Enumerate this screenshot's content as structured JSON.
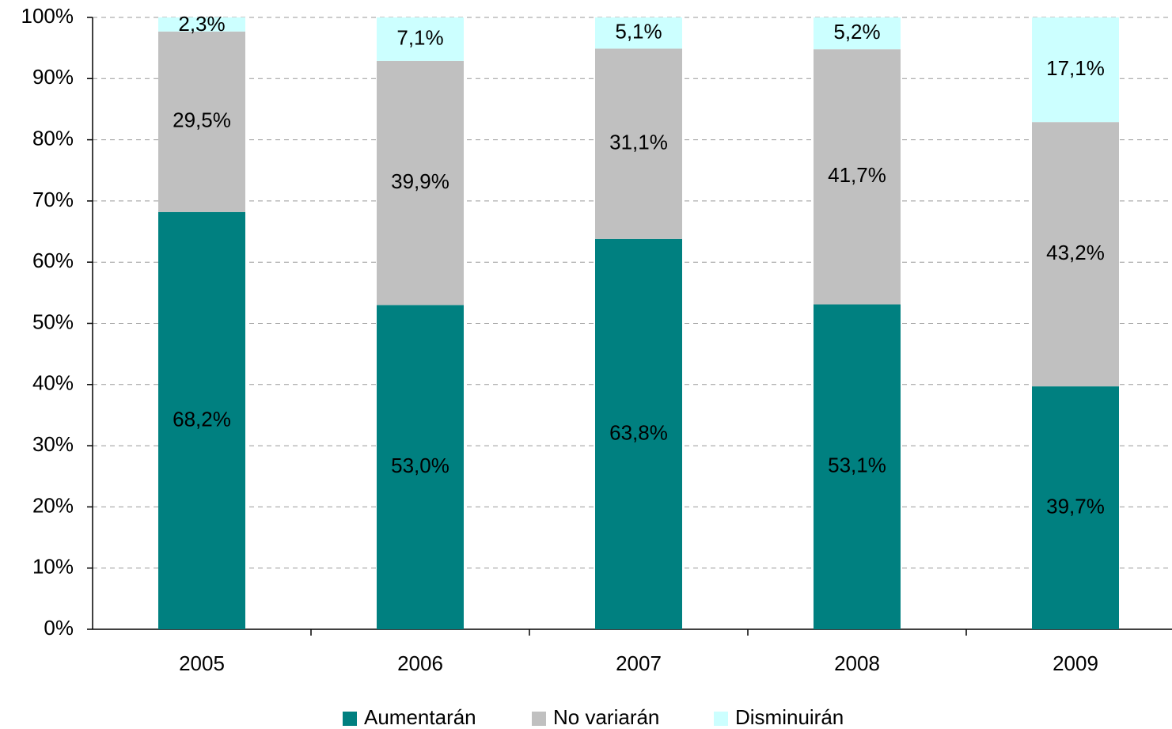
{
  "chart_data": {
    "type": "stacked_bar",
    "categories": [
      "2005",
      "2006",
      "2007",
      "2008",
      "2009"
    ],
    "series": [
      {
        "name": "Aumentarán",
        "color": "#008080",
        "values": [
          68.2,
          53.0,
          63.8,
          53.1,
          39.7
        ],
        "value_labels": [
          "68,2%",
          "53,0%",
          "63,8%",
          "53,1%",
          "39,7%"
        ]
      },
      {
        "name": "No variarán",
        "color": "#c0c0c0",
        "values": [
          29.5,
          39.9,
          31.1,
          41.7,
          43.2
        ],
        "value_labels": [
          "29,5%",
          "39,9%",
          "31,1%",
          "41,7%",
          "43,2%"
        ]
      },
      {
        "name": "Disminuirán",
        "color": "#ccffff",
        "values": [
          2.3,
          7.1,
          5.1,
          5.2,
          17.1
        ],
        "value_labels": [
          "2,3%",
          "7,1%",
          "5,1%",
          "5,2%",
          "17,1%"
        ]
      }
    ],
    "ylim": [
      0,
      100
    ],
    "yticks": [
      {
        "value": 0,
        "label": "0%"
      },
      {
        "value": 10,
        "label": "10%"
      },
      {
        "value": 20,
        "label": "20%"
      },
      {
        "value": 30,
        "label": "30%"
      },
      {
        "value": 40,
        "label": "40%"
      },
      {
        "value": 50,
        "label": "50%"
      },
      {
        "value": 60,
        "label": "60%"
      },
      {
        "value": 70,
        "label": "70%"
      },
      {
        "value": 80,
        "label": "80%"
      },
      {
        "value": 90,
        "label": "90%"
      },
      {
        "value": 100,
        "label": "100%"
      }
    ],
    "grid": true,
    "legend": "bottom"
  }
}
